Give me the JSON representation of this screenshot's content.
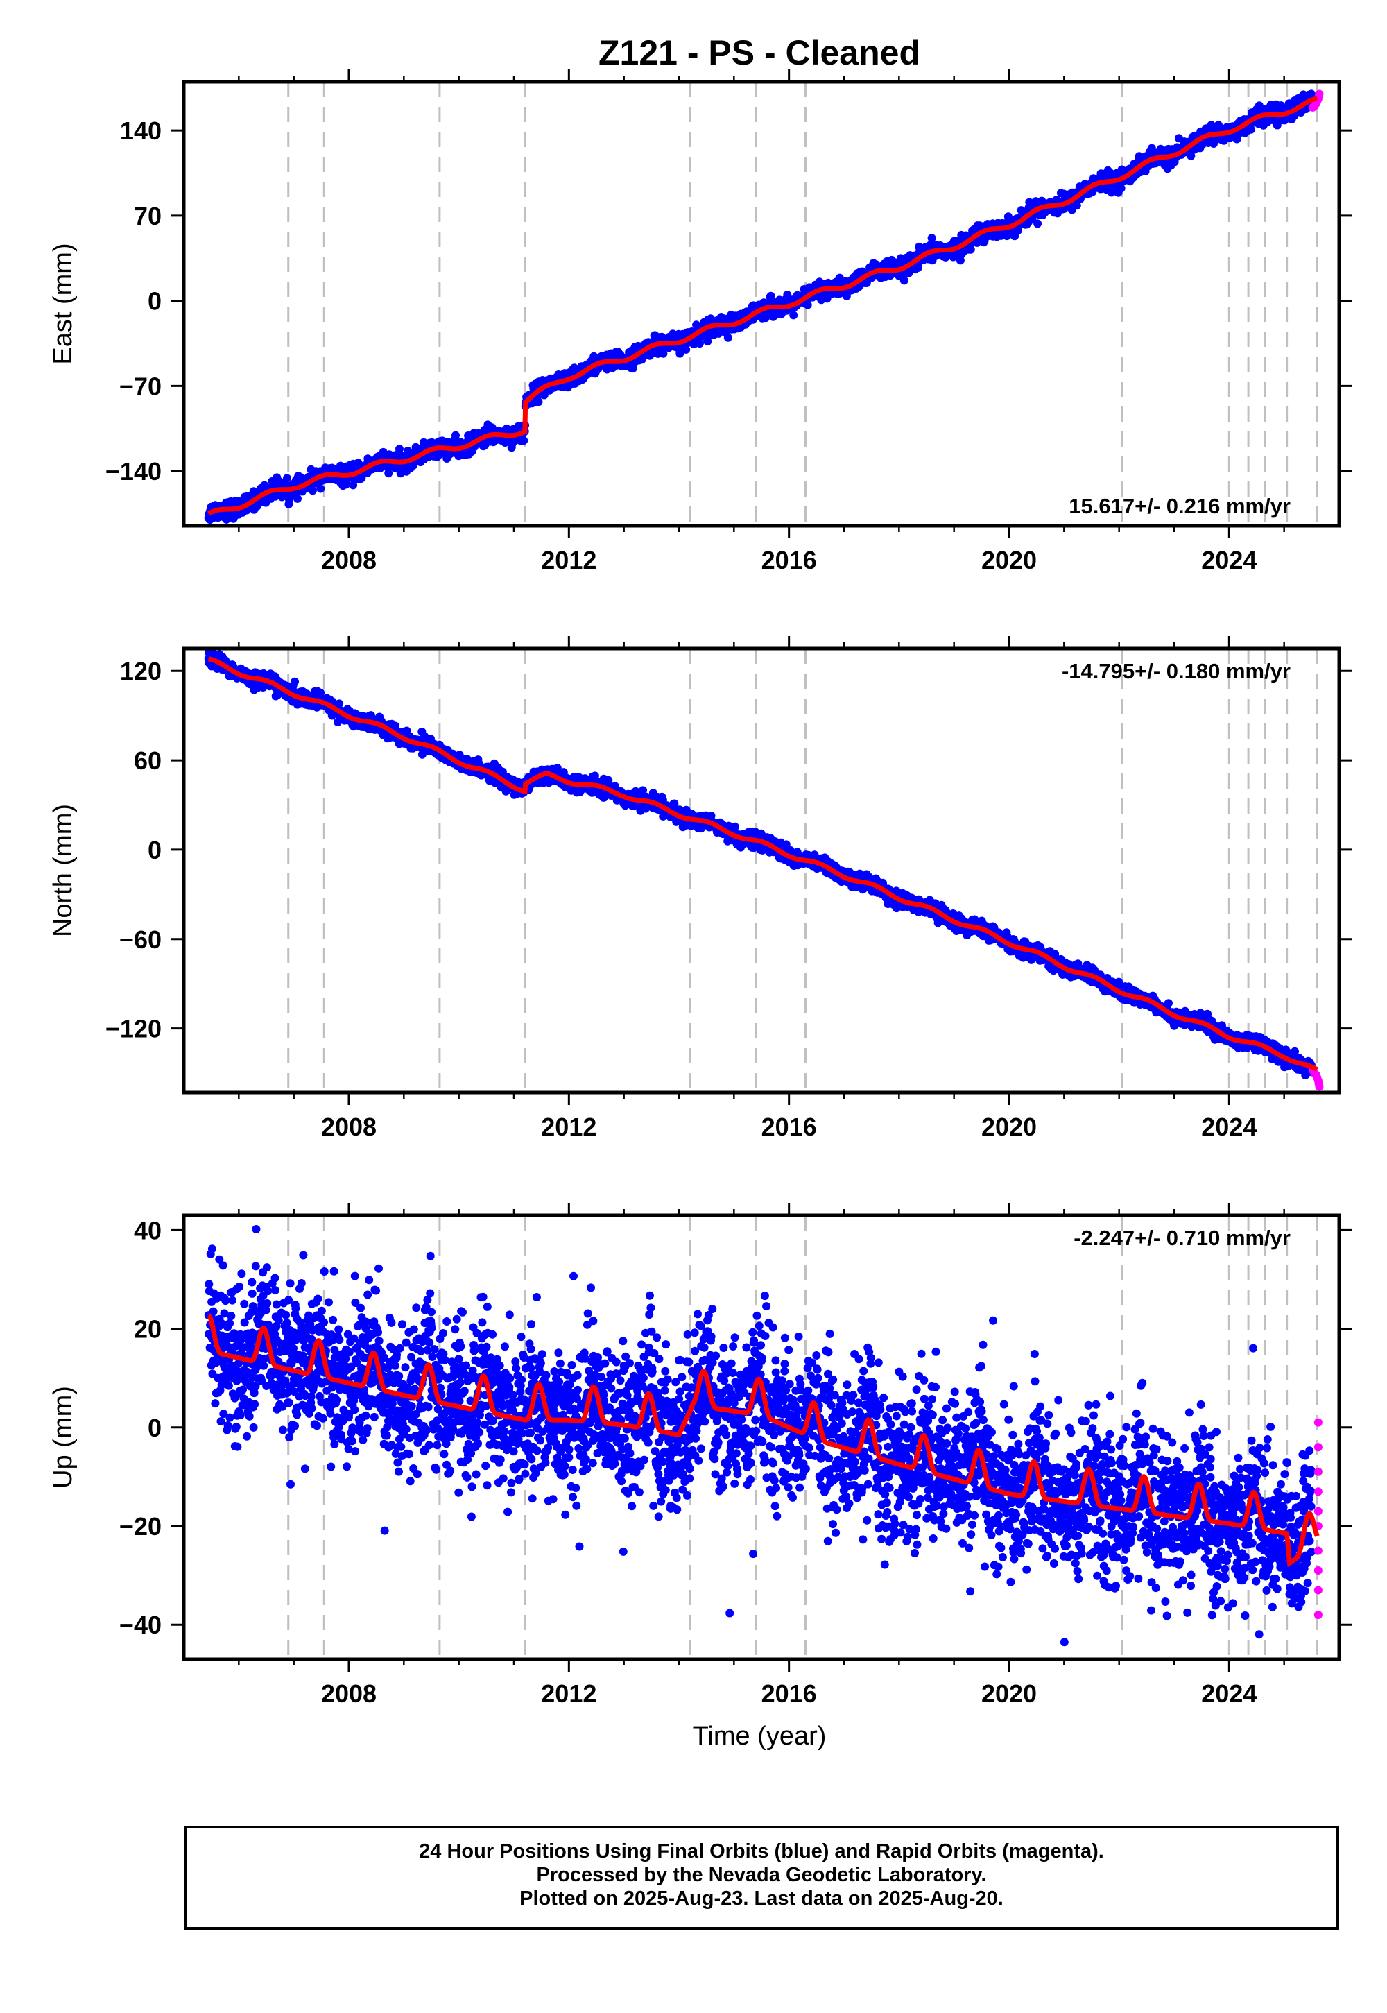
{
  "title": "Z121  - PS - Cleaned",
  "xlabel": "Time (year)",
  "footer": {
    "line1": "24 Hour Positions Using Final Orbits (blue) and Rapid Orbits (magenta).",
    "line2": "Processed by the Nevada Geodetic Laboratory.",
    "line3": "Plotted on 2025-Aug-23. Last data on 2025-Aug-20."
  },
  "colors": {
    "final": "#0000ff",
    "rapid": "#ff00ff",
    "model": "#ff0000",
    "events": "#c0c0c0"
  },
  "chart_data": [
    {
      "type": "scatter",
      "component": "East",
      "ylabel": "East (mm)",
      "rate_label": "15.617+/- 0.216 mm/yr",
      "xlim": [
        2005.0,
        2026.0
      ],
      "ylim": [
        -185,
        180
      ],
      "xticks": [
        2008,
        2012,
        2016,
        2020,
        2024
      ],
      "yticks": [
        -140,
        -70,
        0,
        70,
        140
      ],
      "events": [
        2006.9,
        2007.55,
        2009.65,
        2011.2,
        2014.2,
        2015.4,
        2016.3,
        2022.05,
        2024.0,
        2024.35,
        2024.65,
        2025.05,
        2025.6
      ],
      "offsets": [
        {
          "x": 2011.2,
          "size": 24
        }
      ],
      "model": {
        "start": [
          2005.45,
          -177
        ],
        "end": [
          2025.6,
          164
        ],
        "amplitude": 2.5,
        "points": [
          [
            2005.45,
            -177
          ],
          [
            2007.0,
            -152
          ],
          [
            2009.0,
            -130
          ],
          [
            2011.2,
            -106
          ],
          [
            2011.21,
            -82
          ],
          [
            2012.0,
            -62
          ],
          [
            2013.0,
            -47
          ],
          [
            2014.0,
            -32
          ],
          [
            2015.0,
            -17
          ],
          [
            2016.0,
            -2
          ],
          [
            2017.0,
            13
          ],
          [
            2018.0,
            28
          ],
          [
            2019.0,
            45
          ],
          [
            2020.0,
            63
          ],
          [
            2021.0,
            82
          ],
          [
            2022.0,
            102
          ],
          [
            2023.0,
            122
          ],
          [
            2024.0,
            141
          ],
          [
            2025.0,
            156
          ],
          [
            2025.6,
            164
          ]
        ]
      },
      "rapid_points": [
        [
          2025.52,
          159
        ],
        [
          2025.55,
          160
        ],
        [
          2025.58,
          162
        ],
        [
          2025.6,
          164
        ],
        [
          2025.62,
          166
        ],
        [
          2025.63,
          168
        ],
        [
          2025.64,
          170
        ]
      ],
      "noise": 3.5
    },
    {
      "type": "scatter",
      "component": "North",
      "ylabel": "North (mm)",
      "rate_label": "-14.795+/- 0.180 mm/yr",
      "xlim": [
        2005.0,
        2026.0
      ],
      "ylim": [
        -163,
        135
      ],
      "xticks": [
        2008,
        2012,
        2016,
        2020,
        2024
      ],
      "yticks": [
        -120,
        -60,
        0,
        60,
        120
      ],
      "events": [
        2006.9,
        2007.55,
        2009.65,
        2011.2,
        2014.2,
        2015.4,
        2016.3,
        2022.05,
        2024.0,
        2024.35,
        2024.65,
        2025.05,
        2025.6
      ],
      "offsets": [
        {
          "x": 2011.2,
          "size": 12
        }
      ],
      "model": {
        "points": [
          [
            2005.45,
            127
          ],
          [
            2007.0,
            105
          ],
          [
            2009.0,
            76
          ],
          [
            2011.2,
            40
          ],
          [
            2011.21,
            45
          ],
          [
            2011.6,
            50
          ],
          [
            2013.0,
            37
          ],
          [
            2014.0,
            24
          ],
          [
            2015.0,
            11
          ],
          [
            2016.0,
            -3
          ],
          [
            2017.0,
            -17
          ],
          [
            2018.0,
            -32
          ],
          [
            2019.0,
            -47
          ],
          [
            2020.0,
            -62
          ],
          [
            2021.0,
            -78
          ],
          [
            2022.0,
            -94
          ],
          [
            2023.0,
            -110
          ],
          [
            2024.0,
            -125
          ],
          [
            2025.0,
            -138
          ],
          [
            2025.6,
            -149
          ]
        ],
        "amplitude": 1.5
      },
      "rapid_points": [
        [
          2025.52,
          -148
        ],
        [
          2025.55,
          -150
        ],
        [
          2025.58,
          -151
        ],
        [
          2025.6,
          -153
        ],
        [
          2025.62,
          -155
        ],
        [
          2025.63,
          -157
        ],
        [
          2025.64,
          -159
        ]
      ],
      "noise": 2.5
    },
    {
      "type": "scatter",
      "component": "Up",
      "ylabel": "Up (mm)",
      "rate_label": "-2.247+/- 0.710 mm/yr",
      "xlim": [
        2005.0,
        2026.0
      ],
      "ylim": [
        -47,
        43
      ],
      "xticks": [
        2008,
        2012,
        2016,
        2020,
        2024
      ],
      "yticks": [
        -40,
        -20,
        0,
        20,
        40
      ],
      "events": [
        2006.9,
        2007.55,
        2009.65,
        2011.2,
        2014.2,
        2015.4,
        2016.3,
        2022.05,
        2024.0,
        2024.35,
        2024.65,
        2025.05,
        2025.6
      ],
      "model": {
        "trend": [
          [
            2005.45,
            17
          ],
          [
            2007.0,
            13
          ],
          [
            2009.0,
            8
          ],
          [
            2011.2,
            3
          ],
          [
            2012.0,
            3
          ],
          [
            2013.0,
            2
          ],
          [
            2014.0,
            0
          ],
          [
            2014.25,
            6
          ],
          [
            2015.5,
            4
          ],
          [
            2016.5,
            -1
          ],
          [
            2018.0,
            -6
          ],
          [
            2020.0,
            -12
          ],
          [
            2022.0,
            -15
          ],
          [
            2024.0,
            -18
          ],
          [
            2025.05,
            -20
          ],
          [
            2025.1,
            -26
          ],
          [
            2025.6,
            -22
          ]
        ],
        "amplitude": 4.5
      },
      "rapid_points": [
        [
          2025.62,
          1
        ],
        [
          2025.62,
          -4
        ],
        [
          2025.62,
          -9
        ],
        [
          2025.62,
          -13
        ],
        [
          2025.62,
          -17
        ],
        [
          2025.62,
          -20
        ],
        [
          2025.62,
          -25
        ],
        [
          2025.62,
          -29
        ],
        [
          2025.62,
          -33
        ],
        [
          2025.62,
          -38
        ]
      ],
      "noise": 7.5
    }
  ]
}
